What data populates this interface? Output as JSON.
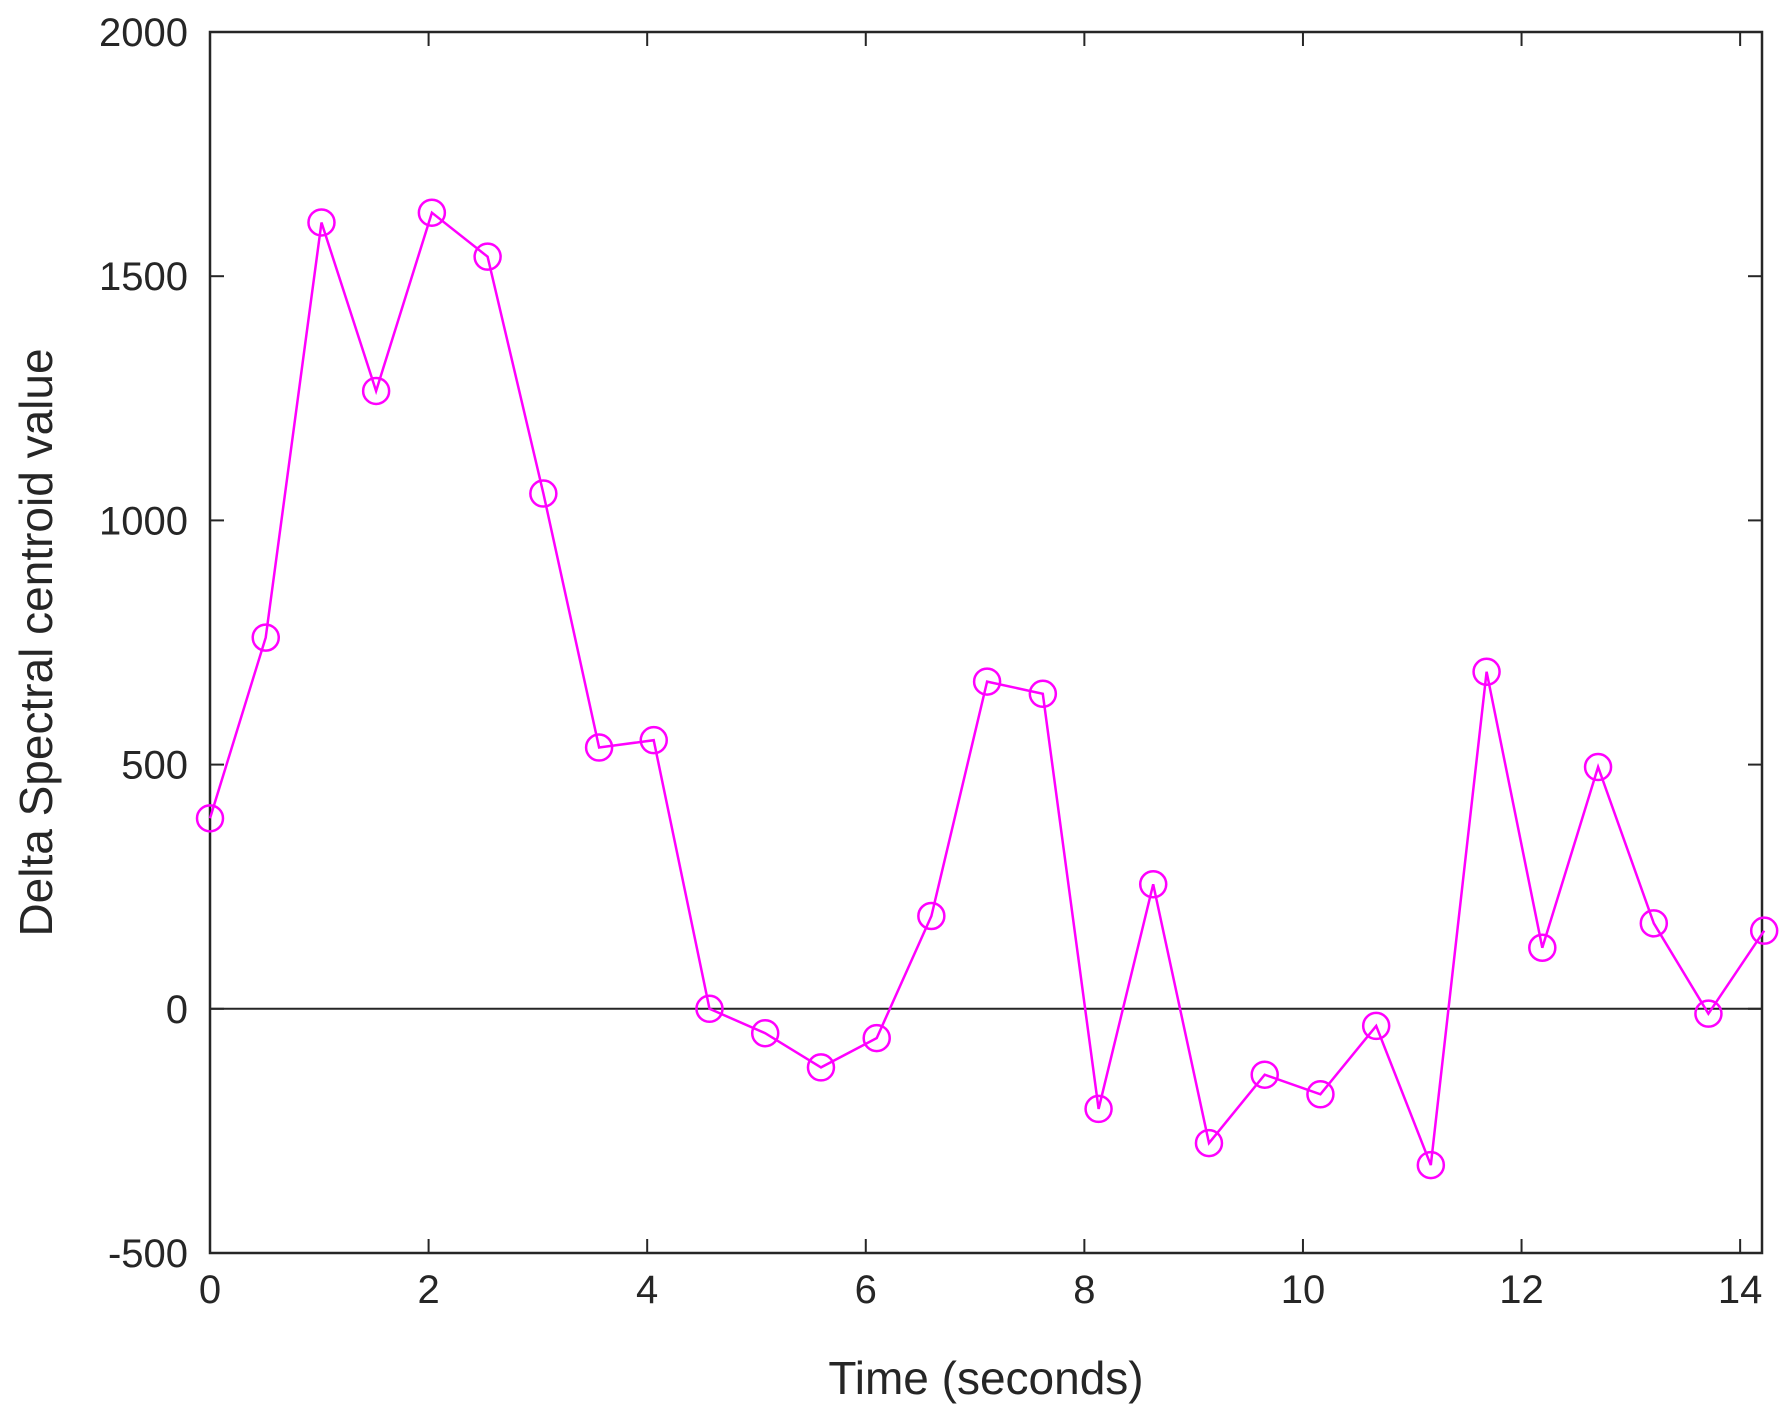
{
  "chart_data": {
    "type": "line",
    "title": "",
    "xlabel": "Time (seconds)",
    "ylabel": "Delta Spectral centroid value",
    "xlim": [
      0,
      14.2
    ],
    "ylim": [
      -500,
      2000
    ],
    "xticks": [
      0,
      2,
      4,
      6,
      8,
      10,
      12,
      14
    ],
    "yticks": [
      -500,
      0,
      500,
      1000,
      1500,
      2000
    ],
    "xtick_labels": [
      "0",
      "2",
      "4",
      "6",
      "8",
      "10",
      "12",
      "14"
    ],
    "ytick_labels": [
      "-500",
      "0",
      "500",
      "1000",
      "1500",
      "2000"
    ],
    "grid": false,
    "legend": "none",
    "reference_line": {
      "y": 0,
      "color": "#262626"
    },
    "series": [
      {
        "color": "#ff00ff",
        "marker": "circle",
        "x": [
          0,
          0.51,
          1.02,
          1.52,
          2.03,
          2.54,
          3.05,
          3.56,
          4.06,
          4.57,
          5.08,
          5.59,
          6.1,
          6.6,
          7.11,
          7.62,
          8.13,
          8.63,
          9.14,
          9.65,
          10.16,
          10.67,
          11.17,
          11.68,
          12.19,
          12.7,
          13.21,
          13.71,
          14.22
        ],
        "y": [
          390,
          760,
          1610,
          1265,
          1630,
          1540,
          1055,
          535,
          550,
          0,
          -50,
          -120,
          -60,
          190,
          670,
          645,
          -205,
          255,
          -275,
          -135,
          -175,
          -35,
          -320,
          690,
          125,
          495,
          175,
          -10,
          160
        ]
      }
    ]
  }
}
